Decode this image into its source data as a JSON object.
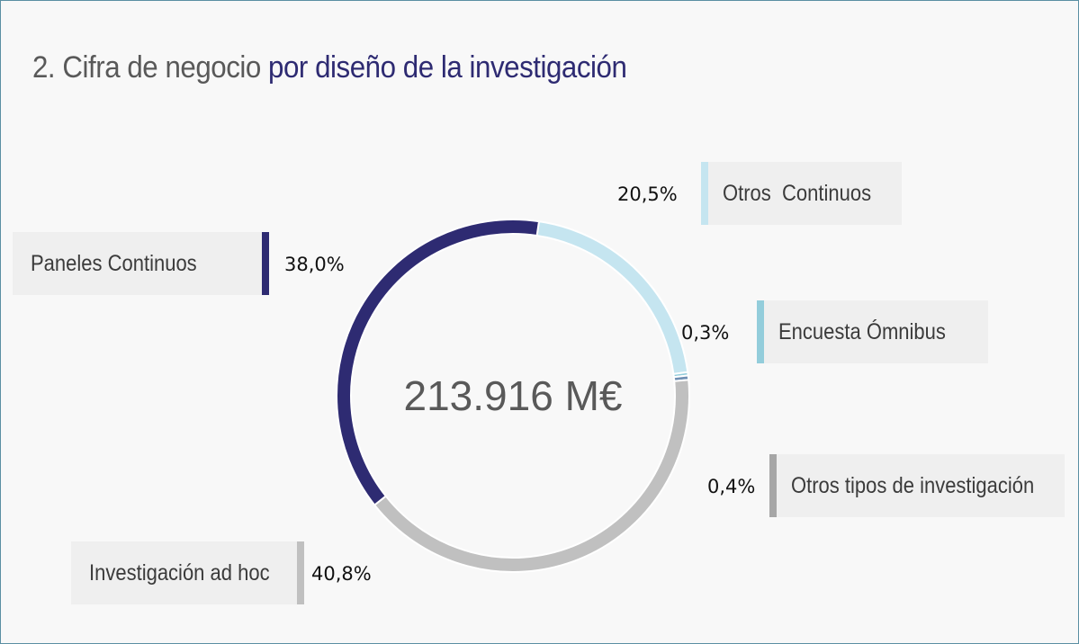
{
  "title": {
    "prefix": "2. Cifra de negocio ",
    "accent": "por diseño de la investigación"
  },
  "center_total": "213.916 M€",
  "colors": {
    "paneles": "#2e2b72",
    "otros_continuos": "#c5e5f0",
    "omnibus": "#93cddb",
    "otros_tipos": "#a6a6a6",
    "ad_hoc": "#c0c0c0"
  },
  "labels": {
    "paneles": {
      "name": "Paneles Continuos",
      "pct": "38,0%"
    },
    "otros_continuos": {
      "name": "Otros  Continuos",
      "pct": "20,5%"
    },
    "omnibus": {
      "name": "Encuesta Ómnibus",
      "pct": "0,3%"
    },
    "otros_tipos": {
      "name": "Otros tipos de investigación",
      "pct": "0,4%"
    },
    "ad_hoc": {
      "name": "Investigación ad hoc",
      "pct": "40,8%"
    }
  },
  "chart_data": {
    "type": "pie",
    "donut": true,
    "title": "2. Cifra de negocio por diseño de la investigación",
    "center_label": "213.916 M€",
    "categories": [
      "Otros  Continuos",
      "Encuesta Ómnibus",
      "Otros tipos de investigación",
      "Investigación ad hoc",
      "Paneles Continuos"
    ],
    "values": [
      20.5,
      0.3,
      0.4,
      40.8,
      38.0
    ],
    "colors": [
      "#c5e5f0",
      "#93cddb",
      "#6f8fb3",
      "#c0c0c0",
      "#2e2b72"
    ]
  }
}
